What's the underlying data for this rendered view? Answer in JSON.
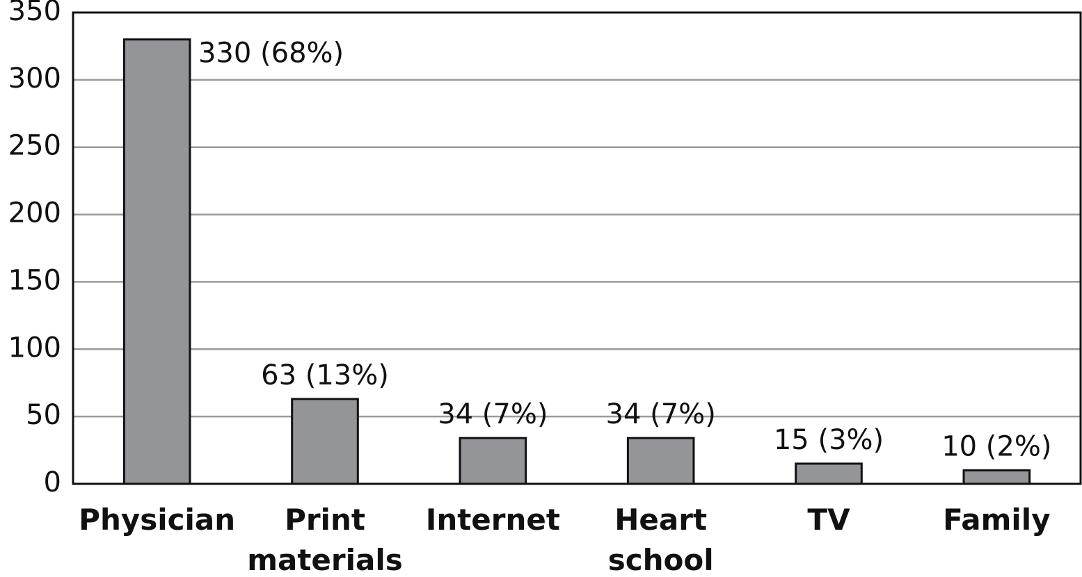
{
  "chart_data": {
    "type": "bar",
    "categories": [
      [
        "Physician"
      ],
      [
        "Print",
        "materials"
      ],
      [
        "Internet"
      ],
      [
        "Heart",
        "school"
      ],
      [
        "TV"
      ],
      [
        "Family"
      ]
    ],
    "values": [
      330,
      63,
      34,
      34,
      15,
      10
    ],
    "value_labels": [
      "330 (68%)",
      "63 (13%)",
      "34 (7%)",
      "34 (7%)",
      "15 (3%)",
      "10 (2%)"
    ],
    "color": "#939598",
    "ylim": [
      0,
      350
    ],
    "yticks": [
      0,
      50,
      100,
      150,
      200,
      250,
      300,
      350
    ],
    "grid": true
  }
}
